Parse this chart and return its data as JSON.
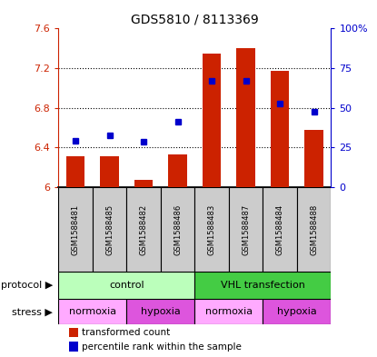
{
  "title": "GDS5810 / 8113369",
  "samples": [
    "GSM1588481",
    "GSM1588485",
    "GSM1588482",
    "GSM1588486",
    "GSM1588483",
    "GSM1588487",
    "GSM1588484",
    "GSM1588488"
  ],
  "bar_values": [
    6.31,
    6.31,
    6.07,
    6.33,
    7.35,
    7.4,
    7.17,
    6.58
  ],
  "dot_values": [
    6.47,
    6.52,
    6.46,
    6.66,
    7.07,
    7.07,
    6.84,
    6.76
  ],
  "bar_bottom": 6.0,
  "ylim_left": [
    6.0,
    7.6
  ],
  "ylim_right": [
    0,
    100
  ],
  "yticks_left": [
    6.0,
    6.4,
    6.8,
    7.2,
    7.6
  ],
  "yticks_right": [
    0,
    25,
    50,
    75,
    100
  ],
  "ytick_labels_left": [
    "6",
    "6.4",
    "6.8",
    "7.2",
    "7.6"
  ],
  "ytick_labels_right": [
    "0",
    "25",
    "50",
    "75",
    "100%"
  ],
  "bar_color": "#cc2200",
  "dot_color": "#0000cc",
  "protocol_groups": [
    {
      "label": "control",
      "start": 0,
      "end": 4,
      "color": "#bbffbb"
    },
    {
      "label": "VHL transfection",
      "start": 4,
      "end": 8,
      "color": "#44cc44"
    }
  ],
  "stress_groups": [
    {
      "label": "normoxia",
      "start": 0,
      "end": 2,
      "color": "#ffaaff"
    },
    {
      "label": "hypoxia",
      "start": 2,
      "end": 4,
      "color": "#dd55dd"
    },
    {
      "label": "normoxia",
      "start": 4,
      "end": 6,
      "color": "#ffaaff"
    },
    {
      "label": "hypoxia",
      "start": 6,
      "end": 8,
      "color": "#dd55dd"
    }
  ],
  "legend_bar_label": "transformed count",
  "legend_dot_label": "percentile rank within the sample",
  "protocol_label": "protocol",
  "stress_label": "stress",
  "sample_bg_color": "#cccccc",
  "grid_yticks": [
    6.4,
    6.8,
    7.2
  ],
  "border_color": "#000000"
}
